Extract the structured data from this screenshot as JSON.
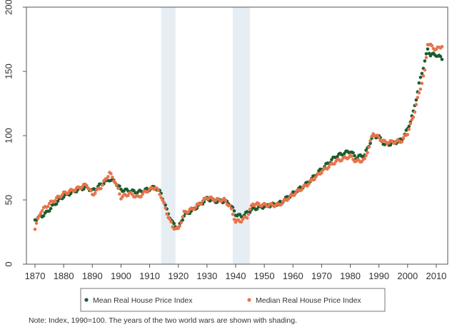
{
  "chart_data": {
    "type": "scatter",
    "xlim": [
      1867,
      2014
    ],
    "ylim": [
      0,
      200
    ],
    "x_ticks": [
      1870,
      1880,
      1890,
      1900,
      1910,
      1920,
      1930,
      1940,
      1950,
      1960,
      1970,
      1980,
      1990,
      2000,
      2010
    ],
    "y_ticks": [
      0,
      50,
      100,
      150,
      200
    ],
    "grid": false,
    "legend_position": "bottom",
    "shaded_periods": [
      [
        1914,
        1919
      ],
      [
        1939,
        1945
      ]
    ],
    "note": "Note: Index, 1990=100. The years of the two world wars are shown with shading.",
    "colors": {
      "mean": "#1a5c2e",
      "median": "#e8734a",
      "shade": "#e6eef4"
    },
    "series": [
      {
        "name": "Mean Real House Price Index",
        "anchors": [
          [
            1870,
            35
          ],
          [
            1872,
            37
          ],
          [
            1874,
            40
          ],
          [
            1876,
            45
          ],
          [
            1880,
            53
          ],
          [
            1885,
            58
          ],
          [
            1888,
            60
          ],
          [
            1890,
            57
          ],
          [
            1893,
            62
          ],
          [
            1896,
            66
          ],
          [
            1898,
            64
          ],
          [
            1900,
            58
          ],
          [
            1903,
            57
          ],
          [
            1906,
            56
          ],
          [
            1909,
            58
          ],
          [
            1912,
            60
          ],
          [
            1914,
            55
          ],
          [
            1916,
            42
          ],
          [
            1918,
            32
          ],
          [
            1920,
            28
          ],
          [
            1922,
            38
          ],
          [
            1925,
            42
          ],
          [
            1928,
            47
          ],
          [
            1930,
            51
          ],
          [
            1933,
            49
          ],
          [
            1936,
            49
          ],
          [
            1938,
            47
          ],
          [
            1940,
            39
          ],
          [
            1942,
            37
          ],
          [
            1944,
            40
          ],
          [
            1946,
            43
          ],
          [
            1950,
            45
          ],
          [
            1955,
            47
          ],
          [
            1960,
            55
          ],
          [
            1965,
            63
          ],
          [
            1970,
            74
          ],
          [
            1975,
            84
          ],
          [
            1980,
            88
          ],
          [
            1982,
            83
          ],
          [
            1985,
            85
          ],
          [
            1988,
            100
          ],
          [
            1990,
            99
          ],
          [
            1992,
            93
          ],
          [
            1995,
            94
          ],
          [
            1998,
            97
          ],
          [
            2000,
            105
          ],
          [
            2002,
            118
          ],
          [
            2004,
            140
          ],
          [
            2006,
            158
          ],
          [
            2007,
            167
          ],
          [
            2008,
            163
          ],
          [
            2010,
            163
          ],
          [
            2012,
            160
          ]
        ]
      },
      {
        "name": "Median Real House Price Index",
        "anchors": [
          [
            1870,
            28
          ],
          [
            1872,
            41
          ],
          [
            1875,
            47
          ],
          [
            1880,
            55
          ],
          [
            1885,
            59
          ],
          [
            1888,
            62
          ],
          [
            1890,
            54
          ],
          [
            1893,
            60
          ],
          [
            1896,
            71
          ],
          [
            1898,
            64
          ],
          [
            1900,
            52
          ],
          [
            1903,
            55
          ],
          [
            1906,
            52
          ],
          [
            1909,
            57
          ],
          [
            1912,
            60
          ],
          [
            1914,
            53
          ],
          [
            1916,
            40
          ],
          [
            1918,
            29
          ],
          [
            1920,
            27
          ],
          [
            1922,
            40
          ],
          [
            1925,
            43
          ],
          [
            1928,
            48
          ],
          [
            1930,
            52
          ],
          [
            1933,
            50
          ],
          [
            1936,
            50
          ],
          [
            1938,
            45
          ],
          [
            1940,
            33
          ],
          [
            1942,
            34
          ],
          [
            1944,
            37
          ],
          [
            1946,
            47
          ],
          [
            1950,
            46
          ],
          [
            1955,
            46
          ],
          [
            1960,
            54
          ],
          [
            1965,
            62
          ],
          [
            1970,
            72
          ],
          [
            1975,
            80
          ],
          [
            1980,
            84
          ],
          [
            1982,
            80
          ],
          [
            1985,
            81
          ],
          [
            1988,
            102
          ],
          [
            1990,
            98
          ],
          [
            1992,
            95
          ],
          [
            1995,
            95
          ],
          [
            1998,
            96
          ],
          [
            2000,
            102
          ],
          [
            2002,
            115
          ],
          [
            2004,
            133
          ],
          [
            2006,
            150
          ],
          [
            2007,
            172
          ],
          [
            2008,
            170
          ],
          [
            2010,
            167
          ],
          [
            2012,
            170
          ]
        ]
      }
    ]
  }
}
